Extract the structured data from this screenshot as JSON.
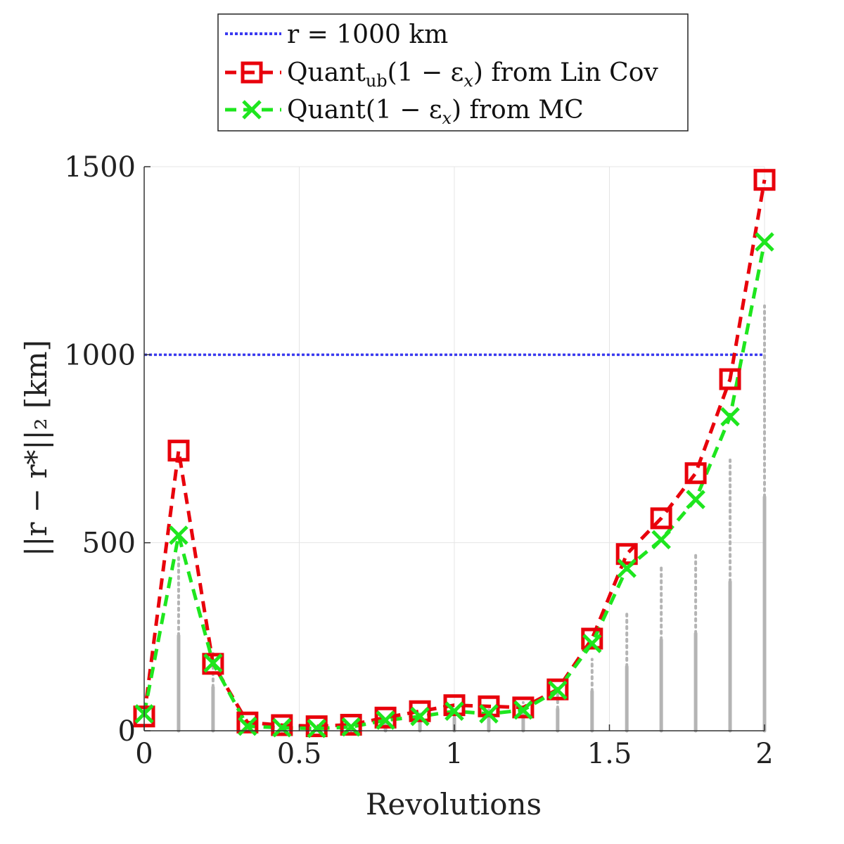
{
  "chart_data": {
    "type": "line",
    "title": "",
    "xlabel": "Revolutions",
    "ylabel": "||r − r*||₂ [km]",
    "xlim": [
      0,
      2
    ],
    "ylim": [
      0,
      1500
    ],
    "grid": true,
    "legend_position": "top-center (outside)",
    "x_ticks": [
      0,
      0.5,
      1,
      1.5,
      2
    ],
    "x_tick_labels": [
      "0",
      "0.5",
      "1",
      "1.5",
      "2"
    ],
    "y_ticks": [
      0,
      500,
      1000,
      1500
    ],
    "y_tick_labels": [
      "0",
      "500",
      "1000",
      "1500"
    ],
    "x": [
      0,
      0.111,
      0.222,
      0.333,
      0.444,
      0.556,
      0.667,
      0.778,
      0.889,
      1.0,
      1.111,
      1.222,
      1.333,
      1.444,
      1.556,
      1.667,
      1.778,
      1.889,
      2.0
    ],
    "reference_line": {
      "name": "r = 1000 km",
      "label": "r = 1000 km",
      "y": 1000,
      "color": "#3a3af0"
    },
    "series": [
      {
        "name": "Quant_ub(1 − ε_x) from Lin Cov",
        "legend_main": "Quant",
        "legend_sub": "ub",
        "legend_rest": "(1 − ε",
        "legend_sub2": "x",
        "legend_tail": ") from Lin Cov",
        "color": "#e8000b",
        "marker": "square",
        "values": [
          38,
          745,
          178,
          22,
          15,
          12,
          16,
          35,
          52,
          68,
          65,
          62,
          110,
          245,
          470,
          565,
          685,
          935,
          1465
        ]
      },
      {
        "name": "Quant(1 − ε_x) from MC",
        "legend_main": "Quant",
        "legend_sub": "",
        "legend_rest": "(1 − ε",
        "legend_sub2": "x",
        "legend_tail": ") from MC",
        "color": "#1ee61e",
        "marker": "x",
        "values": [
          45,
          520,
          180,
          12,
          8,
          6,
          10,
          28,
          38,
          52,
          45,
          55,
          108,
          232,
          432,
          508,
          615,
          835,
          1300
        ]
      }
    ],
    "samples_color": "#b4b4b4",
    "samples_max": [
      0,
      460,
      210,
      20,
      12,
      10,
      14,
      30,
      45,
      60,
      60,
      75,
      105,
      190,
      310,
      440,
      470,
      720,
      1130
    ]
  }
}
